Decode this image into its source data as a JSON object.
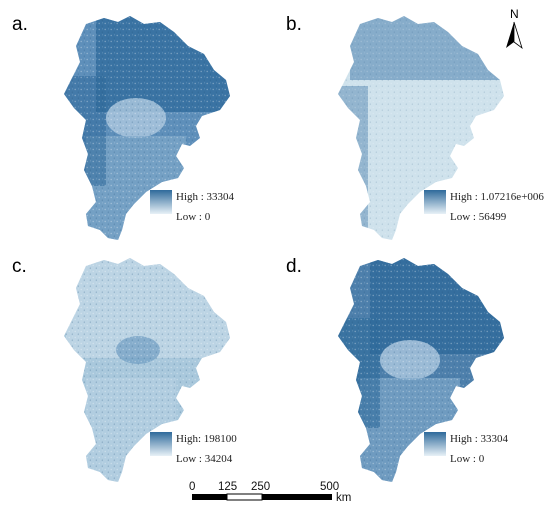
{
  "panels": [
    {
      "letter": "a.",
      "legend": {
        "high": "High : 33304",
        "low": "Low : 0"
      }
    },
    {
      "letter": "b.",
      "legend": {
        "high": "High : 1.07216e+006",
        "low": "Low : 56499"
      }
    },
    {
      "letter": "c.",
      "legend": {
        "high": "High: 198100",
        "low": "Low : 34204"
      }
    },
    {
      "letter": "d.",
      "legend": {
        "high": "High : 33304",
        "low": "Low : 0"
      }
    }
  ],
  "north_arrow": {
    "label": "N"
  },
  "scale_bar": {
    "ticks": [
      "0",
      "125",
      "250",
      "500"
    ],
    "unit": "km"
  },
  "colors": {
    "ramp_high": "#2f6a9b",
    "ramp_low": "#e8f1f7",
    "map_a_base": "#5e8fba",
    "map_b_base": "#cfe2ec",
    "map_c_base": "#a9c8dc",
    "map_d_base": "#4d7fab"
  }
}
